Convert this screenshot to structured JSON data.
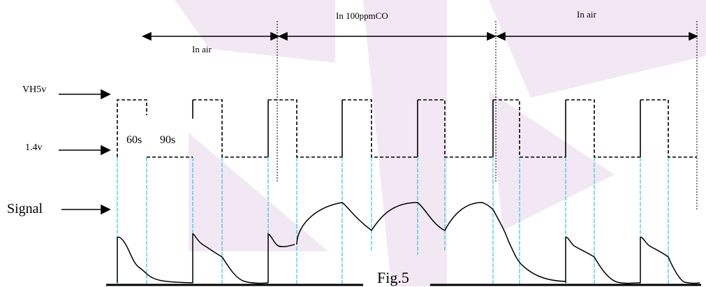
{
  "diagram": {
    "phase_labels": {
      "air_first": "In air",
      "co": "In 100ppmCO",
      "air_second": "In air"
    },
    "level_labels": {
      "high": "VH5v",
      "low": "1.4v",
      "signal": "Signal"
    },
    "durations": {
      "high": "60s",
      "low": "90s"
    },
    "caption": "Fig.5",
    "colors": {
      "line": "#000000",
      "guide": "#2ec8e6",
      "watermark": "#e7d6ea"
    }
  }
}
